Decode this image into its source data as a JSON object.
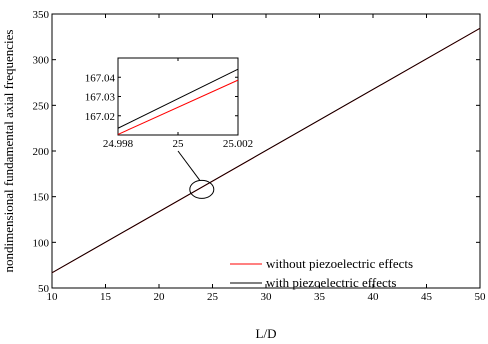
{
  "chart_data": [
    {
      "type": "line",
      "xlabel": "L/D",
      "ylabel": "nondimensional fundamental axial frequencies",
      "xlim": [
        10,
        50
      ],
      "ylim": [
        50,
        350
      ],
      "x_ticks": [
        "10",
        "15",
        "20",
        "25",
        "30",
        "35",
        "40",
        "45",
        "50"
      ],
      "y_ticks": [
        "50",
        "100",
        "150",
        "200",
        "250",
        "300",
        "350"
      ],
      "grid": false,
      "legend_position": "bottom-right",
      "series": [
        {
          "name": "without piezoelectric effects",
          "color": "#ff0000",
          "x": [
            10,
            50
          ],
          "y": [
            66.6,
            334.3
          ]
        },
        {
          "name": "with   piezoelectric effects",
          "color": "#000000",
          "x": [
            10,
            50
          ],
          "y": [
            66.7,
            334.4
          ]
        }
      ],
      "annotations": [
        {
          "type": "ellipse",
          "center": [
            24.0,
            158.0
          ],
          "note": "zoom region"
        }
      ]
    },
    {
      "type": "line",
      "role": "inset",
      "xlim": [
        24.998,
        25.002
      ],
      "ylim": [
        167.01,
        167.05
      ],
      "x_ticks": [
        "24.998",
        "25",
        "25.002"
      ],
      "y_ticks": [
        "167.02",
        "167.03",
        "167.04"
      ],
      "series": [
        {
          "name": "without piezoelectric effects",
          "color": "#ff0000",
          "x": [
            24.998,
            25.002
          ],
          "y": [
            167.0103,
            167.0385
          ]
        },
        {
          "name": "with   piezoelectric effects",
          "color": "#000000",
          "x": [
            24.998,
            25.002
          ],
          "y": [
            167.0135,
            167.0442
          ]
        }
      ]
    }
  ]
}
